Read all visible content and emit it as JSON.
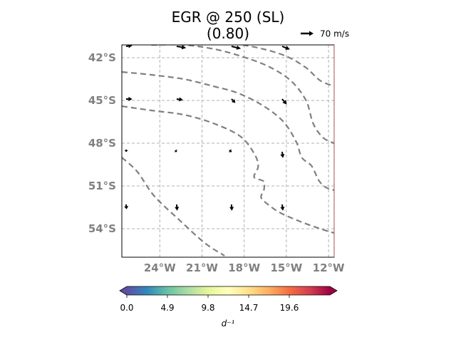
{
  "chart_data": {
    "type": "vector-contour-map",
    "title_line1": "EGR @ 250 (SL)",
    "title_line2": "(0.80)",
    "quiver_key": {
      "label": "70 m/s"
    },
    "x_ticks": [
      {
        "value": -24,
        "label": "24°W"
      },
      {
        "value": -21,
        "label": "21°W"
      },
      {
        "value": -18,
        "label": "18°W"
      },
      {
        "value": -15,
        "label": "15°W"
      },
      {
        "value": -12,
        "label": "12°W"
      }
    ],
    "y_ticks": [
      {
        "value": -42,
        "label": "42°S"
      },
      {
        "value": -45,
        "label": "45°S"
      },
      {
        "value": -48,
        "label": "48°S"
      },
      {
        "value": -51,
        "label": "51°S"
      },
      {
        "value": -54,
        "label": "54°S"
      }
    ],
    "xlim": [
      -26.7,
      -11.6
    ],
    "ylim": [
      -56.0,
      -41.1
    ],
    "grid": true,
    "vectors": [
      {
        "lon": -26.4,
        "lat": -41.2,
        "u": 4,
        "v": 0.5
      },
      {
        "lon": -22.8,
        "lat": -41.2,
        "u": 6,
        "v": -1
      },
      {
        "lon": -18.9,
        "lat": -41.2,
        "u": 6,
        "v": -1.5
      },
      {
        "lon": -15.3,
        "lat": -41.2,
        "u": 5,
        "v": -2
      },
      {
        "lon": -26.4,
        "lat": -44.9,
        "u": 4,
        "v": 0
      },
      {
        "lon": -22.8,
        "lat": -44.9,
        "u": 4,
        "v": -0.5
      },
      {
        "lon": -18.9,
        "lat": -44.9,
        "u": 2.5,
        "v": -2.5
      },
      {
        "lon": -15.3,
        "lat": -44.9,
        "u": 3,
        "v": -3.5
      },
      {
        "lon": -26.4,
        "lat": -48.6,
        "u": 0.2,
        "v": 1.5
      },
      {
        "lon": -22.8,
        "lat": -48.6,
        "u": -1,
        "v": 1
      },
      {
        "lon": -18.9,
        "lat": -48.6,
        "u": -1.5,
        "v": 1
      },
      {
        "lon": -15.3,
        "lat": -48.6,
        "u": 0.5,
        "v": -4
      },
      {
        "lon": -26.4,
        "lat": -52.3,
        "u": 0.3,
        "v": -3
      },
      {
        "lon": -22.8,
        "lat": -52.3,
        "u": 0.3,
        "v": -4
      },
      {
        "lon": -18.9,
        "lat": -52.3,
        "u": 0.2,
        "v": -4
      },
      {
        "lon": -15.3,
        "lat": -52.3,
        "u": 0.5,
        "v": -4
      }
    ],
    "contours": [
      [
        [
          -26.7,
          -49.0
        ],
        [
          -25.6,
          -50.0
        ],
        [
          -24.4,
          -51.7
        ],
        [
          -22.6,
          -53.4
        ],
        [
          -20.8,
          -55.0
        ],
        [
          -19.4,
          -55.9
        ]
      ],
      [
        [
          -26.7,
          -45.4
        ],
        [
          -24.6,
          -45.7
        ],
        [
          -22.3,
          -46.0
        ],
        [
          -20.2,
          -46.6
        ],
        [
          -18.3,
          -47.5
        ],
        [
          -17.3,
          -48.7
        ],
        [
          -17.0,
          -49.6
        ],
        [
          -17.3,
          -50.3
        ],
        [
          -17.1,
          -50.5
        ],
        [
          -16.6,
          -50.7
        ],
        [
          -16.6,
          -51.3
        ],
        [
          -16.8,
          -51.8
        ],
        [
          -16.3,
          -52.3
        ],
        [
          -15.4,
          -52.9
        ],
        [
          -14.0,
          -53.5
        ],
        [
          -12.6,
          -54.0
        ],
        [
          -11.6,
          -54.3
        ]
      ],
      [
        [
          -26.7,
          -43.0
        ],
        [
          -24.6,
          -43.2
        ],
        [
          -22.3,
          -43.5
        ],
        [
          -20.2,
          -44.0
        ],
        [
          -18.4,
          -44.5
        ],
        [
          -16.6,
          -45.4
        ],
        [
          -15.2,
          -46.5
        ],
        [
          -14.3,
          -47.9
        ],
        [
          -13.9,
          -49.0
        ],
        [
          -13.2,
          -49.6
        ],
        [
          -12.7,
          -50.6
        ],
        [
          -12.2,
          -51.1
        ],
        [
          -11.6,
          -51.3
        ]
      ],
      [
        [
          -24.6,
          -41.1
        ],
        [
          -22.3,
          -41.1
        ],
        [
          -20.1,
          -41.4
        ],
        [
          -18.2,
          -41.9
        ],
        [
          -16.3,
          -42.6
        ],
        [
          -14.7,
          -43.6
        ],
        [
          -13.6,
          -45.0
        ],
        [
          -13.1,
          -46.6
        ],
        [
          -12.4,
          -47.6
        ],
        [
          -11.6,
          -48.0
        ]
      ],
      [
        [
          -18.1,
          -41.1
        ],
        [
          -16.6,
          -41.4
        ],
        [
          -15.0,
          -41.9
        ],
        [
          -13.6,
          -42.7
        ],
        [
          -12.6,
          -43.6
        ],
        [
          -11.6,
          -44.0
        ]
      ]
    ],
    "colorbar": {
      "colormap": "Spectral_r",
      "colors": [
        "#5e4fa2",
        "#3288bd",
        "#66c2a5",
        "#abdda4",
        "#e6f598",
        "#ffffbf",
        "#fee08b",
        "#fdae61",
        "#f46d43",
        "#d53e4f",
        "#9e0142"
      ],
      "vmin": 0.0,
      "vmax": 24.5,
      "ticks": [
        {
          "value": 0.0,
          "label": "0.0"
        },
        {
          "value": 4.9,
          "label": "4.9"
        },
        {
          "value": 9.8,
          "label": "9.8"
        },
        {
          "value": 14.7,
          "label": "14.7"
        },
        {
          "value": 19.6,
          "label": "19.6"
        }
      ],
      "label": "d⁻¹",
      "extend": "both"
    }
  }
}
